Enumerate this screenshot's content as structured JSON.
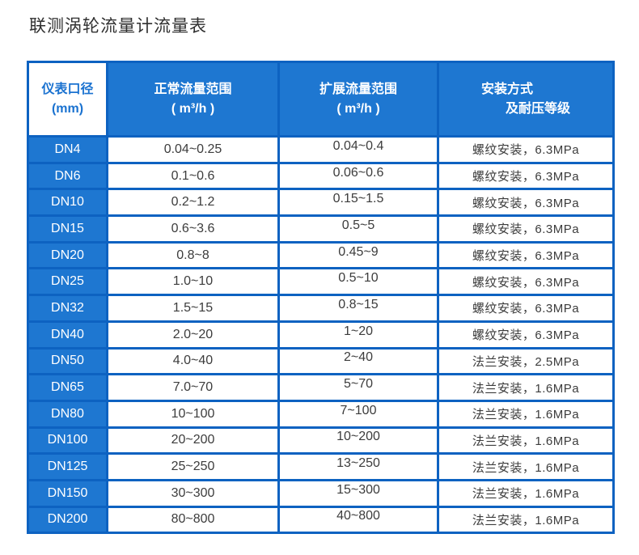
{
  "title": "联测涡轮流量计流量表",
  "colors": {
    "header_blue": "#1e77d1",
    "grid_blue": "#0d62c1",
    "header_text_blue": "#1a72d0",
    "body_text": "#3c3c3c"
  },
  "table": {
    "headers": [
      {
        "line1": "仪表口径",
        "line2": "(mm)"
      },
      {
        "line1": "正常流量范围",
        "line2": "( m³/h )"
      },
      {
        "line1": "扩展流量范围",
        "line2": "( m³/h )"
      },
      {
        "line1": "安装方式",
        "line2": "及耐压等级"
      }
    ],
    "rows": [
      {
        "dn": "DN4",
        "normal": "0.04~0.25",
        "extended": "0.04~0.4",
        "install": "螺纹安装，6.3MPa"
      },
      {
        "dn": "DN6",
        "normal": "0.1~0.6",
        "extended": "0.06~0.6",
        "install": "螺纹安装，6.3MPa"
      },
      {
        "dn": "DN10",
        "normal": "0.2~1.2",
        "extended": "0.15~1.5",
        "install": "螺纹安装，6.3MPa"
      },
      {
        "dn": "DN15",
        "normal": "0.6~3.6",
        "extended": "0.5~5",
        "install": "螺纹安装，6.3MPa"
      },
      {
        "dn": "DN20",
        "normal": "0.8~8",
        "extended": "0.45~9",
        "install": "螺纹安装，6.3MPa"
      },
      {
        "dn": "DN25",
        "normal": "1.0~10",
        "extended": "0.5~10",
        "install": "螺纹安装，6.3MPa"
      },
      {
        "dn": "DN32",
        "normal": "1.5~15",
        "extended": "0.8~15",
        "install": "螺纹安装，6.3MPa"
      },
      {
        "dn": "DN40",
        "normal": "2.0~20",
        "extended": "1~20",
        "install": "螺纹安装，6.3MPa"
      },
      {
        "dn": "DN50",
        "normal": "4.0~40",
        "extended": "2~40",
        "install": "法兰安装，2.5MPa"
      },
      {
        "dn": "DN65",
        "normal": "7.0~70",
        "extended": "5~70",
        "install": "法兰安装，1.6MPa"
      },
      {
        "dn": "DN80",
        "normal": "10~100",
        "extended": "7~100",
        "install": "法兰安装，1.6MPa"
      },
      {
        "dn": "DN100",
        "normal": "20~200",
        "extended": "10~200",
        "install": "法兰安装，1.6MPa"
      },
      {
        "dn": "DN125",
        "normal": "25~250",
        "extended": "13~250",
        "install": "法兰安装，1.6MPa"
      },
      {
        "dn": "DN150",
        "normal": "30~300",
        "extended": "15~300",
        "install": "法兰安装，1.6MPa"
      },
      {
        "dn": "DN200",
        "normal": "80~800",
        "extended": "40~800",
        "install": "法兰安装，1.6MPa"
      }
    ]
  }
}
